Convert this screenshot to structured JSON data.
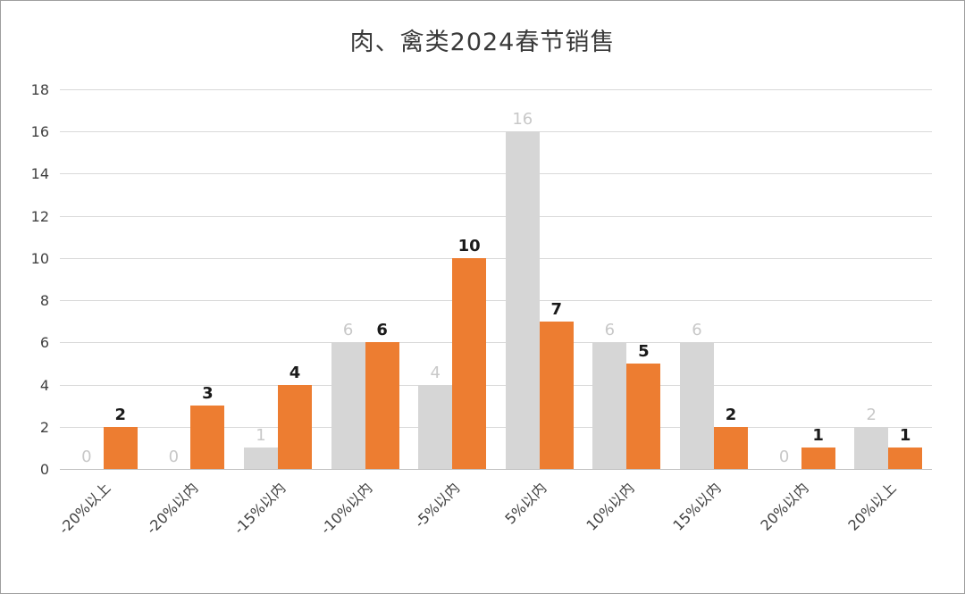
{
  "chart_data": {
    "type": "bar",
    "title": "肉、禽类2024春节销售",
    "categories": [
      "-20%以上",
      "-20%以内",
      "-15%以内",
      "-10%以内",
      "-5%以内",
      "5%以内",
      "10%以内",
      "15%以内",
      "20%以内",
      "20%以上"
    ],
    "series": [
      {
        "name": "series-1-gray",
        "color": "#d6d6d6",
        "label_color": "#c8c8c8",
        "label_bold": false,
        "values": [
          0,
          0,
          1,
          6,
          4,
          16,
          6,
          6,
          0,
          2
        ]
      },
      {
        "name": "series-2-orange",
        "color": "#ed7d31",
        "label_color": "#1a1a1a",
        "label_bold": true,
        "values": [
          2,
          3,
          4,
          6,
          10,
          7,
          5,
          2,
          1,
          1
        ]
      }
    ],
    "ylim": [
      0,
      18
    ],
    "yticks": [
      0,
      2,
      4,
      6,
      8,
      10,
      12,
      14,
      16,
      18
    ],
    "grid": true,
    "legend_position": "none",
    "xlabel": "",
    "ylabel": "",
    "colors": {
      "grid": "#d9d9d9",
      "axis": "#bfbfbf",
      "title_text": "#3a3a3a",
      "tick_text": "#404040"
    }
  }
}
